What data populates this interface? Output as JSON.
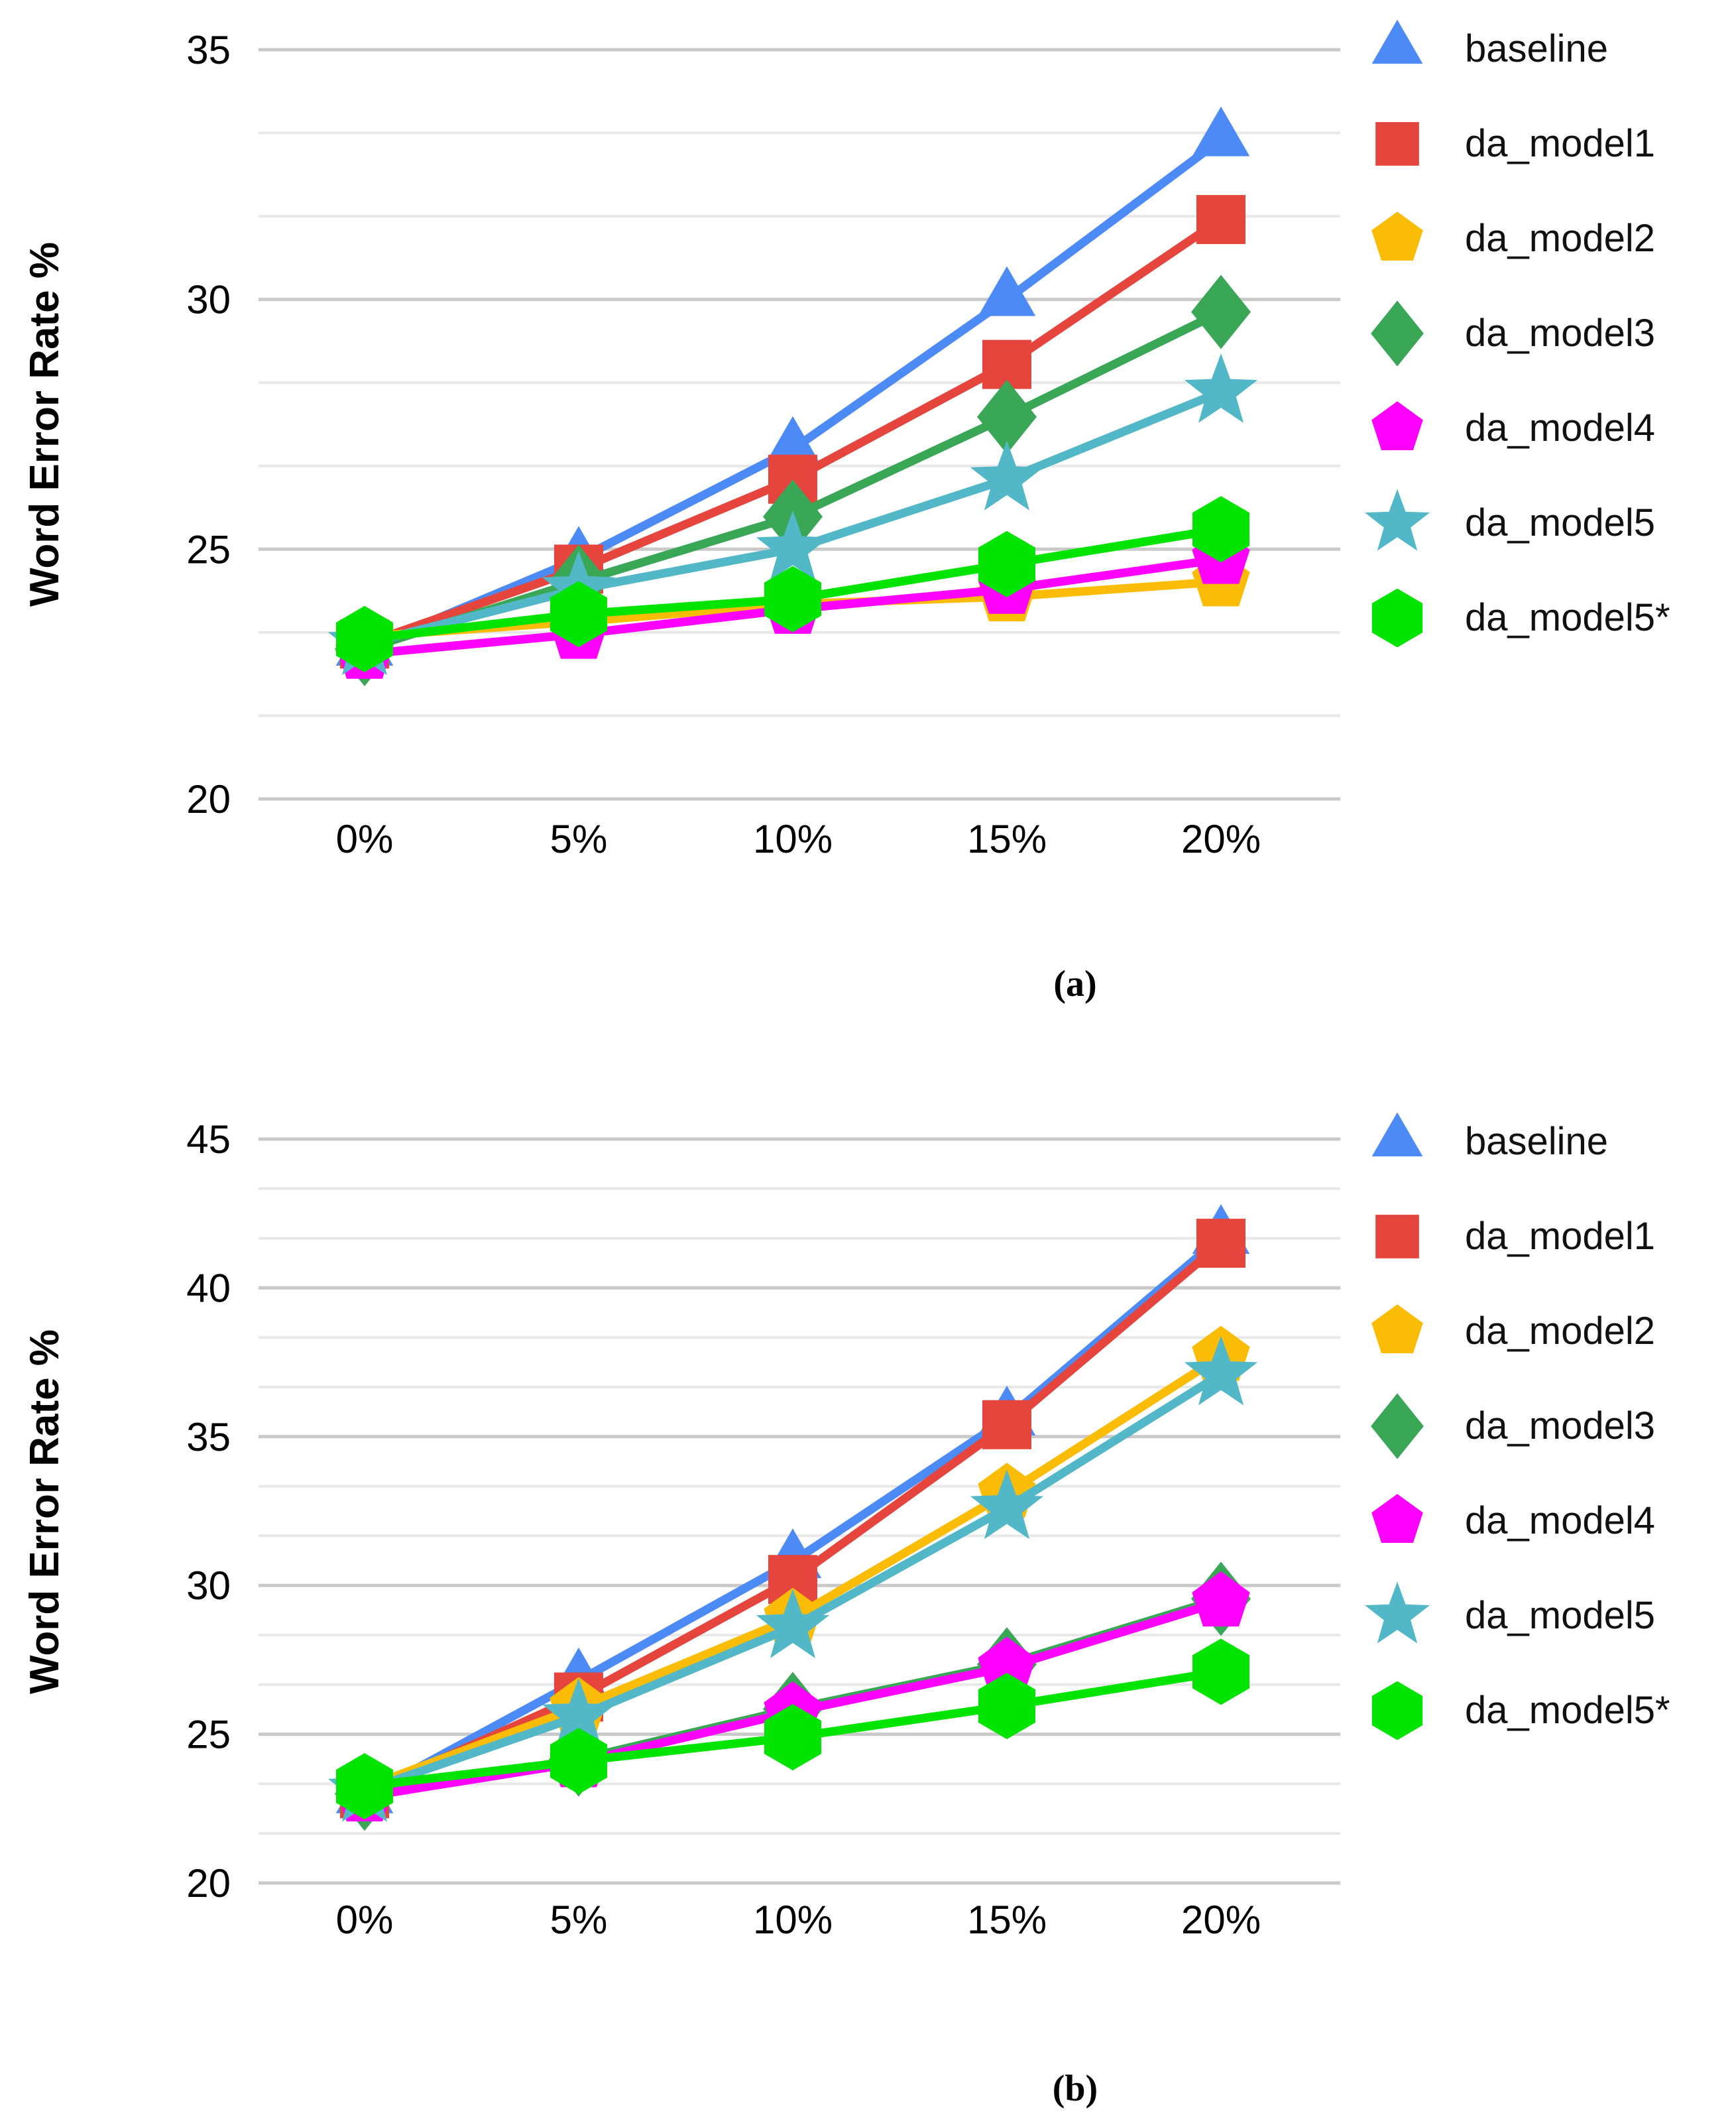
{
  "figure": {
    "ylabel": "Word Error Rate %",
    "panel_a_label": "(a)",
    "panel_b_label": "(b)"
  },
  "chart_data": [
    {
      "type": "line",
      "panel": "a",
      "xlabel": "",
      "ylabel": "Word Error Rate %",
      "categories": [
        "0%",
        "5%",
        "10%",
        "15%",
        "20%"
      ],
      "ylim": [
        20,
        35
      ],
      "yticks": [
        20,
        25,
        30,
        35
      ],
      "minor_gridlines_per_interval": 2,
      "grid": true,
      "legend_position": "right",
      "series": [
        {
          "name": "baseline",
          "marker": "triangle",
          "color": "#4C8BF5",
          "values": [
            23.0,
            24.8,
            27.0,
            30.0,
            33.2
          ]
        },
        {
          "name": "da_model1",
          "marker": "square",
          "color": "#E5453C",
          "values": [
            23.1,
            24.6,
            26.4,
            28.7,
            31.6
          ]
        },
        {
          "name": "da_model2",
          "marker": "pentagon",
          "color": "#FBBC05",
          "values": [
            23.25,
            23.55,
            23.9,
            24.05,
            24.35
          ]
        },
        {
          "name": "da_model3",
          "marker": "diamond",
          "color": "#3AA757",
          "values": [
            23.0,
            24.35,
            25.65,
            27.65,
            29.75
          ]
        },
        {
          "name": "da_model4",
          "marker": "pentagon",
          "color": "#FF00FF",
          "values": [
            22.9,
            23.3,
            23.8,
            24.2,
            24.8
          ]
        },
        {
          "name": "da_model5",
          "marker": "star",
          "color": "#52B8C8",
          "values": [
            23.1,
            24.2,
            25.0,
            26.4,
            28.15
          ]
        },
        {
          "name": "da_model5*",
          "marker": "hexagon",
          "color": "#00E400",
          "values": [
            23.2,
            23.7,
            24.0,
            24.7,
            25.4
          ]
        }
      ]
    },
    {
      "type": "line",
      "panel": "b",
      "xlabel": "",
      "ylabel": "Word Error Rate %",
      "categories": [
        "0%",
        "5%",
        "10%",
        "15%",
        "20%"
      ],
      "ylim": [
        20,
        45
      ],
      "yticks": [
        20,
        25,
        30,
        35,
        40,
        45
      ],
      "minor_gridlines_per_interval": 2,
      "grid": true,
      "legend_position": "right",
      "series": [
        {
          "name": "baseline",
          "marker": "triangle",
          "color": "#4C8BF5",
          "values": [
            22.9,
            26.8,
            30.8,
            35.6,
            41.7
          ]
        },
        {
          "name": "da_model1",
          "marker": "square",
          "color": "#E5453C",
          "values": [
            23.0,
            26.25,
            30.2,
            35.4,
            41.5
          ]
        },
        {
          "name": "da_model2",
          "marker": "pentagon",
          "color": "#FBBC05",
          "values": [
            23.2,
            25.9,
            28.9,
            33.1,
            37.7
          ]
        },
        {
          "name": "da_model3",
          "marker": "diamond",
          "color": "#3AA757",
          "values": [
            23.0,
            24.15,
            25.85,
            27.35,
            29.55
          ]
        },
        {
          "name": "da_model4",
          "marker": "pentagon",
          "color": "#FF00FF",
          "values": [
            22.9,
            24.05,
            25.75,
            27.25,
            29.45
          ]
        },
        {
          "name": "da_model5",
          "marker": "star",
          "color": "#52B8C8",
          "values": [
            23.1,
            25.6,
            28.6,
            32.6,
            37.1
          ]
        },
        {
          "name": "da_model5*",
          "marker": "hexagon",
          "color": "#00E400",
          "values": [
            23.25,
            24.1,
            24.9,
            25.95,
            27.1
          ]
        }
      ]
    }
  ],
  "style": {
    "major_grid_color": "#c9c9c9",
    "minor_grid_color": "#e8e8e8"
  }
}
